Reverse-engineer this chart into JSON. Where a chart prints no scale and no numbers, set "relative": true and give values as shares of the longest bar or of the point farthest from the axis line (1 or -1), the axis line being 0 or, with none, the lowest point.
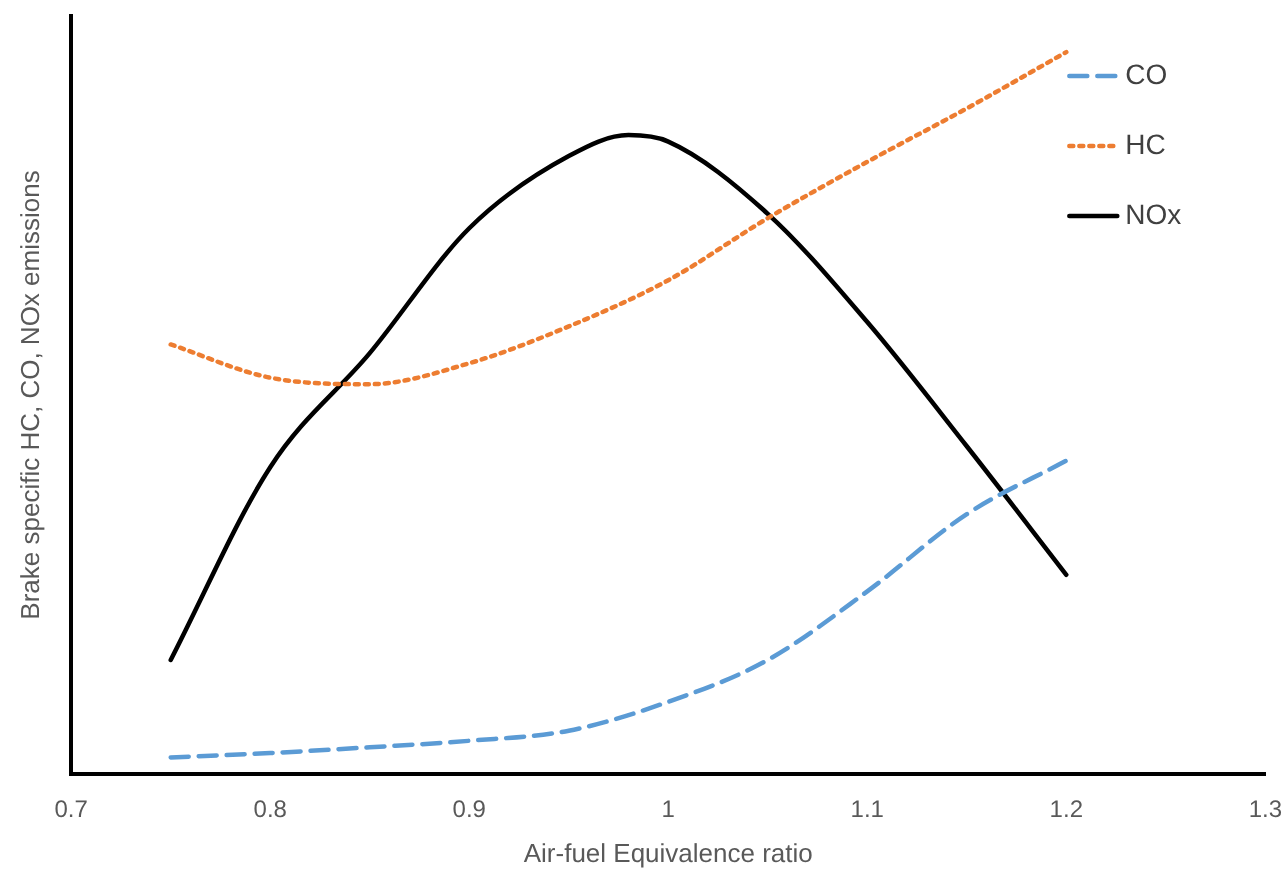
{
  "chart_data": {
    "type": "line",
    "relative": true,
    "xlabel": "Air-fuel Equivalence ratio",
    "ylabel": "Brake specific HC, CO, NOx emissions",
    "xlim": [
      0.7,
      1.3
    ],
    "xticks": [
      0.7,
      0.8,
      0.9,
      1,
      1.1,
      1.2,
      1.3
    ],
    "grid": false,
    "legend": "top right",
    "marker": "none",
    "series": [
      {
        "name": "CO",
        "color": "#5b9bd5",
        "line_style": "dashed",
        "x": [
          0.75,
          0.8,
          0.85,
          0.9,
          0.95,
          1.0,
          1.05,
          1.1,
          1.15,
          1.2
        ],
        "values": [
          0.023,
          0.029,
          0.037,
          0.046,
          0.06,
          0.1,
          0.158,
          0.253,
          0.36,
          0.434
        ]
      },
      {
        "name": "HC",
        "color": "#ed7d31",
        "line_style": "dotted",
        "x": [
          0.75,
          0.8,
          0.85,
          0.9,
          0.95,
          1.0,
          1.05,
          1.1,
          1.15,
          1.2
        ],
        "values": [
          0.595,
          0.549,
          0.54,
          0.569,
          0.62,
          0.684,
          0.77,
          0.848,
          0.922,
          1
        ]
      },
      {
        "name": "NOx",
        "color": "#000000",
        "line_style": "solid",
        "x": [
          0.75,
          0.8,
          0.85,
          0.9,
          0.95,
          0.98,
          1.0,
          1.05,
          1.1,
          1.15,
          1.2
        ],
        "values": [
          0.158,
          0.425,
          0.583,
          0.756,
          0.856,
          0.885,
          0.876,
          0.776,
          0.626,
          0.454,
          0.276
        ]
      }
    ]
  }
}
